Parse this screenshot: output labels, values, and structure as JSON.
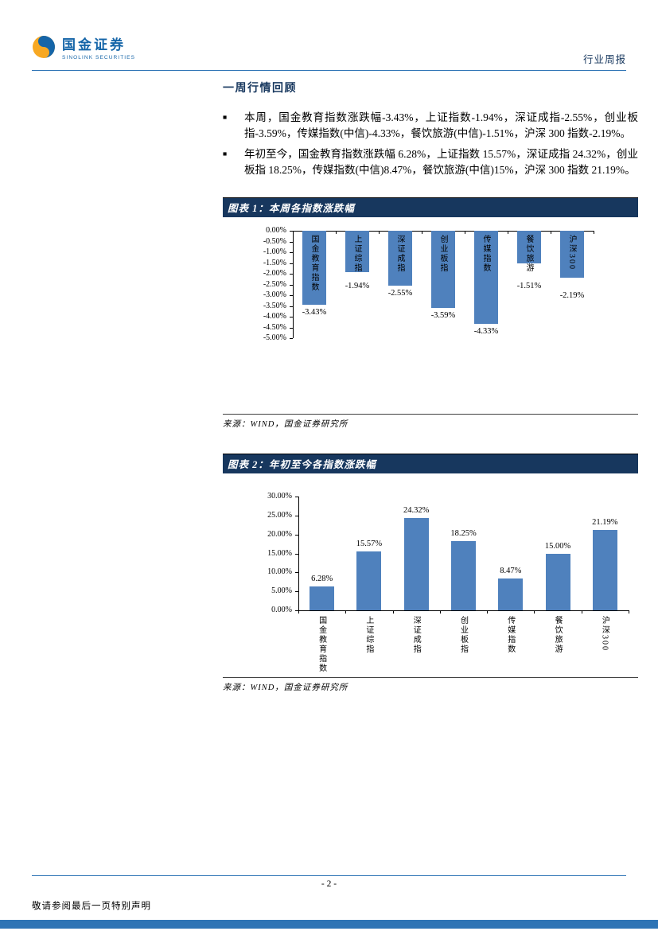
{
  "header": {
    "logo_title": "国金证券",
    "logo_subtitle": "SINOLINK SECURITIES",
    "report_type": "行业周报"
  },
  "section": {
    "title": "一周行情回顾",
    "bullet_marker": "■",
    "bullets": [
      "本周，国金教育指数涨跌幅-3.43%，上证指数-1.94%，深证成指-2.55%，创业板指-3.59%，传媒指数(中信)-4.33%，餐饮旅游(中信)-1.51%，沪深 300 指数-2.19%。",
      "年初至今，国金教育指数涨跌幅 6.28%，上证指数 15.57%，深证成指 24.32%，创业板指 18.25%，传媒指数(中信)8.47%，餐饮旅游(中信)15%，沪深 300 指数 21.19%。"
    ]
  },
  "figures": [
    {
      "title": "图表 1：本周各指数涨跌幅",
      "source": "来源：WIND，国金证券研究所"
    },
    {
      "title": "图表 2：年初至今各指数涨跌幅",
      "source": "来源：WIND，国金证券研究所"
    }
  ],
  "footer": {
    "page_number": "- 2 -",
    "disclaimer": "敬请参阅最后一页特别声明"
  },
  "colors": {
    "bar": "#4F81BD",
    "accent_blue": "#2E74B5",
    "band_bg": "#17375E",
    "logo_blue": "#1565A8",
    "logo_yellow": "#F7A823"
  },
  "chart_data": [
    {
      "type": "bar",
      "title": "本周各指数涨跌幅",
      "categories": [
        "国金教育指数",
        "上证综指",
        "深证成指",
        "创业板指",
        "传媒指数",
        "餐饮旅游",
        "沪深300"
      ],
      "values": [
        -3.43,
        -1.94,
        -2.55,
        -3.59,
        -4.33,
        -1.51,
        -2.19
      ],
      "value_labels": [
        "-3.43%",
        "-1.94%",
        "-2.55%",
        "-3.59%",
        "-4.33%",
        "-1.51%",
        "-2.19%"
      ],
      "ylim": [
        -5,
        0
      ],
      "yticks": [
        "0.00%",
        "-0.50%",
        "-1.00%",
        "-1.50%",
        "-2.00%",
        "-2.50%",
        "-3.00%",
        "-3.50%",
        "-4.00%",
        "-4.50%",
        "-5.00%"
      ],
      "grid": false,
      "legend": false,
      "bar_color": "#4F81BD"
    },
    {
      "type": "bar",
      "title": "年初至今各指数涨跌幅",
      "categories": [
        "国金教育指数",
        "上证综指",
        "深证成指",
        "创业板指",
        "传媒指数",
        "餐饮旅游",
        "沪深300"
      ],
      "values": [
        6.28,
        15.57,
        24.32,
        18.25,
        8.47,
        15.0,
        21.19
      ],
      "value_labels": [
        "6.28%",
        "15.57%",
        "24.32%",
        "18.25%",
        "8.47%",
        "15.00%",
        "21.19%"
      ],
      "ylim": [
        0,
        30
      ],
      "yticks": [
        "30.00%",
        "25.00%",
        "20.00%",
        "15.00%",
        "10.00%",
        "5.00%",
        "0.00%"
      ],
      "grid": false,
      "legend": false,
      "bar_color": "#4F81BD"
    }
  ]
}
